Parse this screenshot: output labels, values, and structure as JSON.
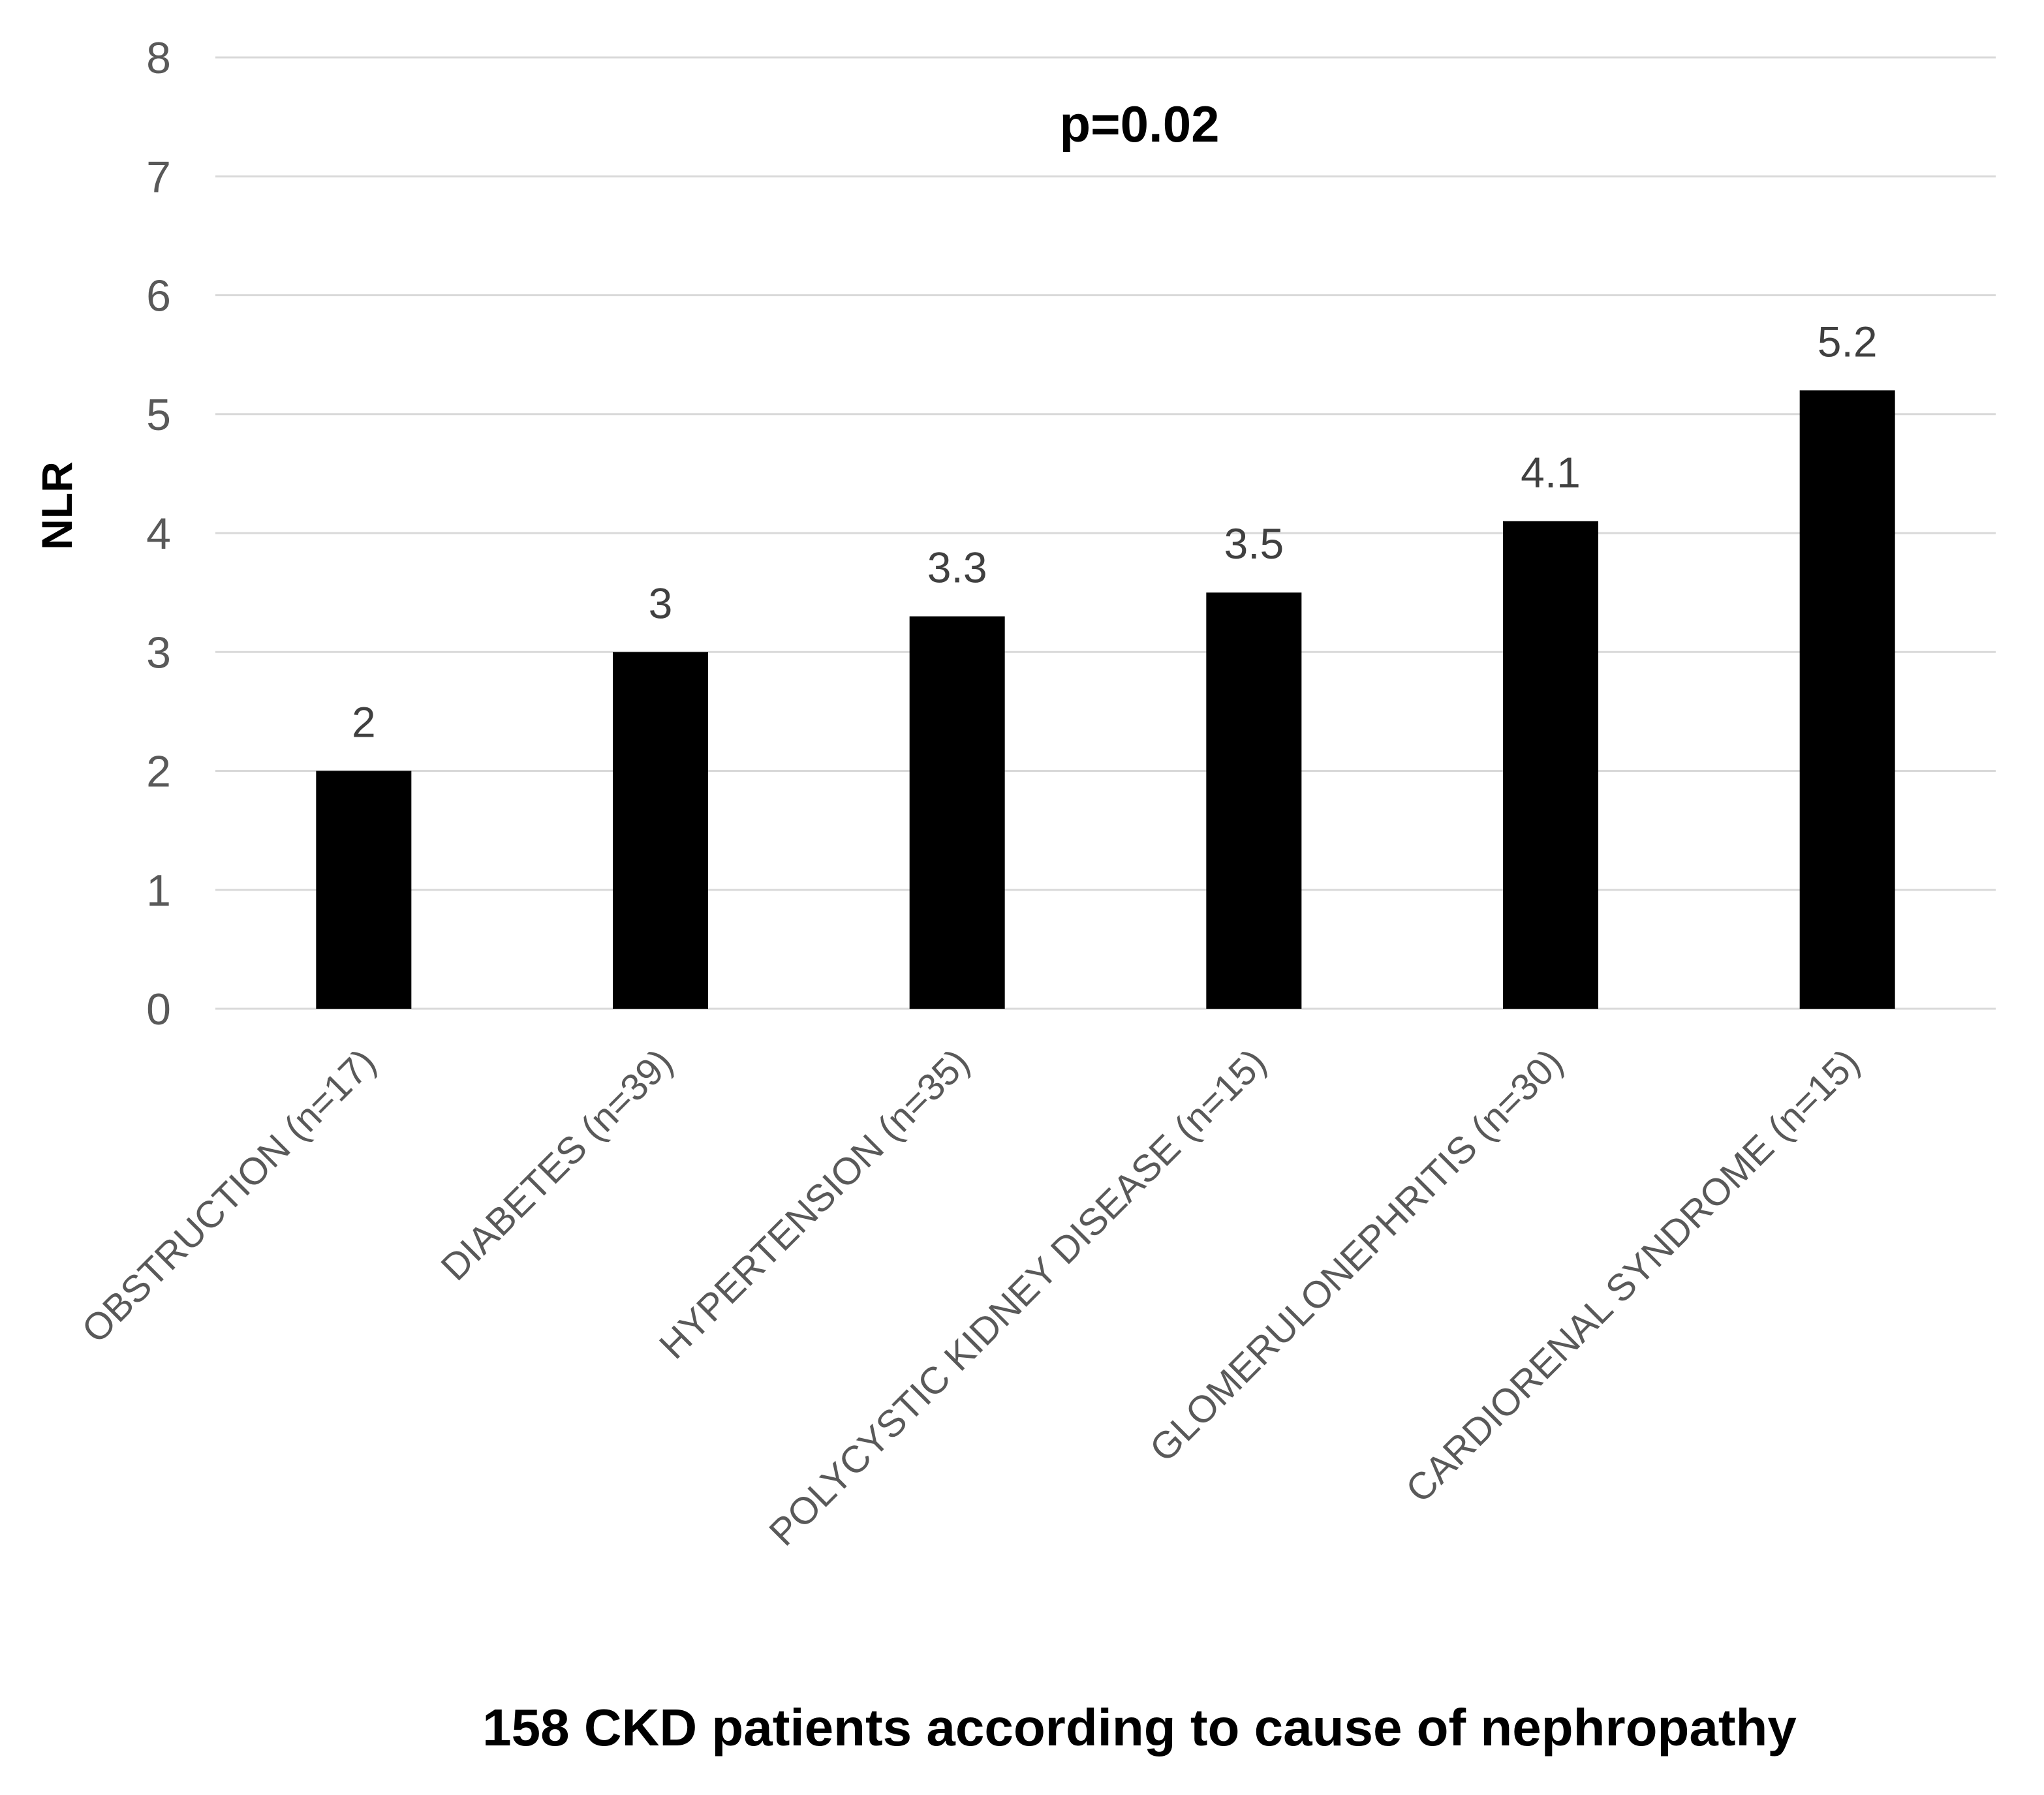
{
  "chart_data": {
    "type": "bar",
    "title": "",
    "annotation": "p=0.02",
    "ylabel": "NLR",
    "xlabel": "158 CKD patients according to cause of nephropathy",
    "ylim": [
      0,
      8
    ],
    "yticks": [
      "0",
      "1",
      "2",
      "3",
      "4",
      "5",
      "6",
      "7",
      "8"
    ],
    "grid": true,
    "categories": [
      "OBSTRUCTION (n=17)",
      "DIABETES (n=39)",
      "HYPERTENSION (n=35)",
      "POLYCYSTIC KIDNEY DISEASE (n=15)",
      "GLOMERULONEPHRITIS (n=30)",
      "CARDIORENAL SYNDROME (n=15)"
    ],
    "values": [
      2,
      3,
      3.3,
      3.5,
      4.1,
      5.2
    ],
    "data_labels": [
      "2",
      "3",
      "3.3",
      "3.5",
      "4.1",
      "5.2"
    ],
    "bar_color": "#000000",
    "grid_color": "#d9d9d9"
  }
}
